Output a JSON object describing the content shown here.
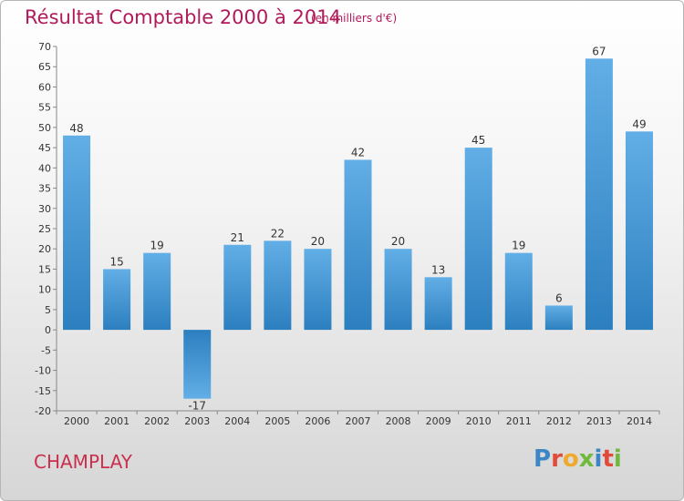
{
  "title": "Résultat Comptable 2000 à 2014",
  "unit_label": "(en milliers d'€)",
  "commune": "CHAMPLAY",
  "logo": {
    "letters": [
      "P",
      "r",
      "o",
      "x",
      "i",
      "t",
      "i"
    ],
    "colors": [
      "#3d86c6",
      "#e04b3a",
      "#f0a92a",
      "#6fba3c",
      "#3d86c6",
      "#e04b3a",
      "#6fba3c"
    ]
  },
  "colors": {
    "bar_light": "#62aee6",
    "bar_dark": "#2c7fbf",
    "title": "#b01a5a",
    "commune": "#c9304d"
  },
  "chart_data": {
    "type": "bar",
    "title": "Résultat Comptable 2000 à 2014",
    "categories": [
      "2000",
      "2001",
      "2002",
      "2003",
      "2004",
      "2005",
      "2006",
      "2007",
      "2008",
      "2009",
      "2010",
      "2011",
      "2012",
      "2013",
      "2014"
    ],
    "values": [
      48,
      15,
      19,
      -17,
      21,
      22,
      20,
      42,
      20,
      13,
      45,
      19,
      6,
      67,
      49
    ],
    "data_labels": [
      "48",
      "15",
      "19",
      "-17",
      "21",
      "22",
      "20",
      "42",
      "20",
      "13",
      "45",
      "19",
      "6",
      "67",
      "49"
    ],
    "ylim": [
      -20,
      70
    ],
    "yticks": [
      70,
      65,
      60,
      55,
      50,
      45,
      40,
      35,
      30,
      25,
      20,
      15,
      10,
      5,
      0,
      -5,
      -10,
      -15,
      -20
    ],
    "ytick_labels": [
      "70",
      "65",
      "60",
      "55",
      "50",
      "45",
      "40",
      "35",
      "30",
      "25",
      "20",
      "15",
      "10",
      "5",
      "0",
      "-5",
      "-10",
      "-15",
      "-20"
    ],
    "grid": false
  }
}
